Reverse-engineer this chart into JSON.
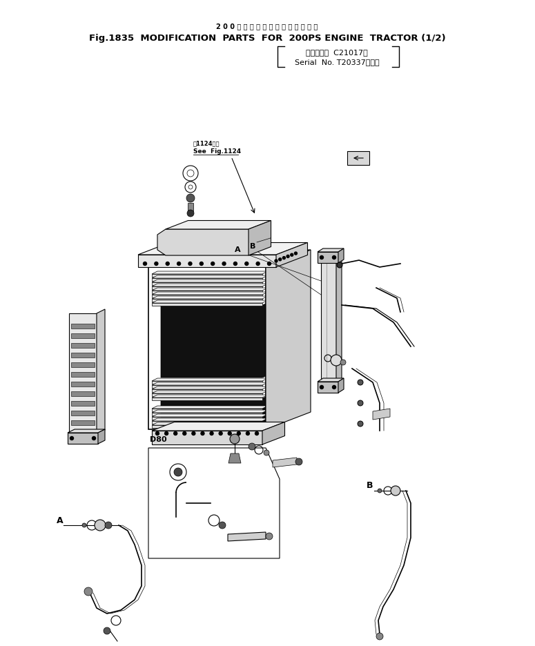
{
  "title_jp": "2 0 0 馬 カ エ ン ジ ン 搭 載 車 専 用 部 品",
  "title_en": "Fig.1835  MODIFICATION  PARTS  FOR  200PS ENGINE  TRACTOR (1/2)",
  "serial_line1": "（適用号機  C21017～",
  "serial_line2": "Serial  No. T20337～．）",
  "note_jp": "図1124参照",
  "note_en": "See  Fig.1124",
  "label_A": "A",
  "label_B": "B",
  "label_D80": "D80",
  "bg_color": "#ffffff",
  "fg_color": "#000000",
  "fig_width": 7.75,
  "fig_height": 9.37
}
